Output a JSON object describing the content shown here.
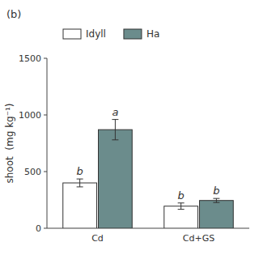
{
  "chart_data": {
    "type": "bar",
    "title": "(b)",
    "categories": [
      "Cd",
      "Cd+GS"
    ],
    "series": [
      {
        "name": "Idyll",
        "color": "#ffffff",
        "values": [
          400,
          195
        ],
        "errors": [
          35,
          28
        ]
      },
      {
        "name": "Ha",
        "color": "#6b8c8c",
        "values": [
          870,
          245
        ],
        "errors": [
          90,
          18
        ]
      }
    ],
    "ylabel": "shoot  (mg kg⁻¹)",
    "ylim": [
      0,
      1500
    ],
    "yticks": [
      0,
      500,
      1000,
      1500
    ],
    "annotations": [
      {
        "text": "b",
        "series": "Idyll",
        "category": "Cd"
      },
      {
        "text": "a",
        "series": "Ha",
        "category": "Cd"
      },
      {
        "text": "b",
        "series": "Idyll",
        "category": "Cd+GS"
      },
      {
        "text": "b",
        "series": "Ha",
        "category": "Cd+GS"
      }
    ],
    "grid": false,
    "legend": "top"
  }
}
